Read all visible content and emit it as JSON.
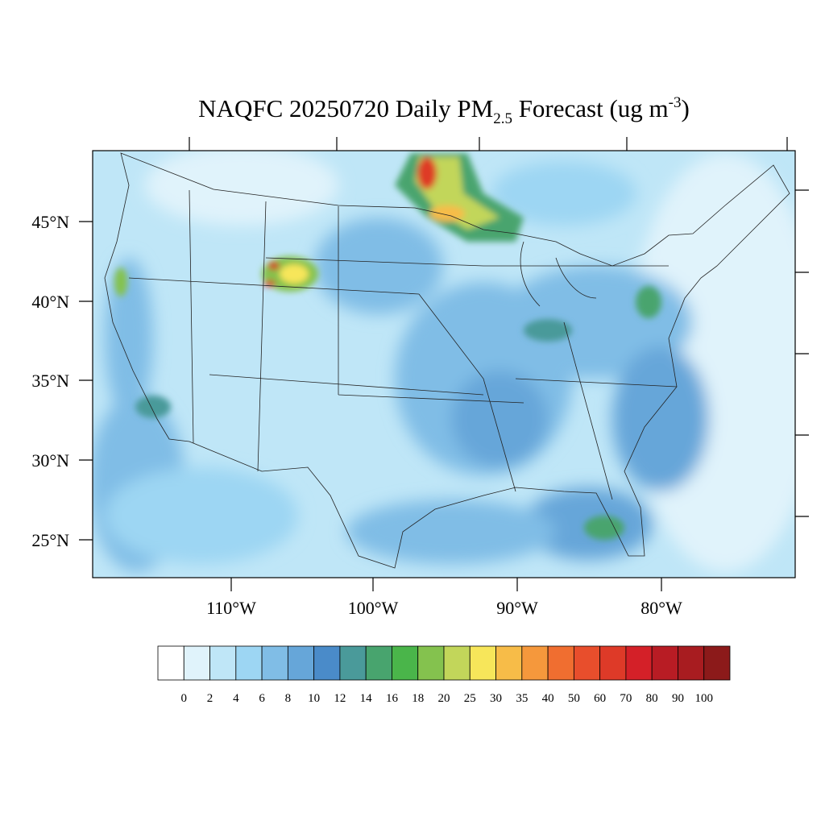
{
  "header": {
    "title": {
      "main": "NAQFC 20250720 Daily PM",
      "subscript": "2.5",
      "middle": " Forecast (ug m",
      "superscript": "-3",
      "end": ")"
    }
  },
  "map": {
    "lat_labels": [
      "45°N",
      "40°N",
      "35°N",
      "30°N",
      "25°N"
    ],
    "lon_labels": [
      "110°W",
      "100°W",
      "90°W",
      "80°W"
    ]
  },
  "colorbar": {
    "levels": [
      0,
      2,
      4,
      6,
      8,
      10,
      12,
      14,
      16,
      18,
      20,
      25,
      30,
      35,
      40,
      50,
      60,
      70,
      80,
      90,
      100
    ],
    "colors": [
      "#ffffff",
      "#e0f3fb",
      "#bfe6f7",
      "#9dd6f3",
      "#80bde6",
      "#66a6d9",
      "#4a8bc9",
      "#4a9a9a",
      "#48a46e",
      "#4ab54a",
      "#84c24e",
      "#c2d65a",
      "#f7e65a",
      "#f7bc48",
      "#f5983c",
      "#f06e30",
      "#e84e2c",
      "#de3a28",
      "#d42028",
      "#b81c24",
      "#a81c20",
      "#8c1a1a"
    ]
  }
}
